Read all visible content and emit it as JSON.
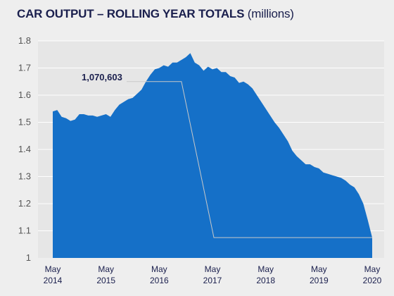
{
  "title": {
    "main": "CAR OUTPUT – ROLLING YEAR TOTALS",
    "unit": "(millions)"
  },
  "colors": {
    "area": "#1570c8",
    "plot_bg": "#e6e6e6",
    "page_bg": "#eeeeee",
    "text": "#1a1f4d",
    "grid": "#ffffff",
    "annotation_line": "#c8c8c8"
  },
  "chart_data": {
    "type": "area",
    "title": "CAR OUTPUT – ROLLING YEAR TOTALS (millions)",
    "xlabel": "",
    "ylabel": "",
    "ylim": [
      1,
      1.8
    ],
    "yticks": [
      "1",
      "1.1",
      "1.2",
      "1.3",
      "1.4",
      "1.5",
      "1.6",
      "1.7",
      "1.8"
    ],
    "xticks": [
      {
        "x": "2014-05",
        "line1": "May",
        "line2": "2014"
      },
      {
        "x": "2015-05",
        "line1": "May",
        "line2": "2015"
      },
      {
        "x": "2016-05",
        "line1": "May",
        "line2": "2016"
      },
      {
        "x": "2017-05",
        "line1": "May",
        "line2": "2017"
      },
      {
        "x": "2018-05",
        "line1": "May",
        "line2": "2018"
      },
      {
        "x": "2019-05",
        "line1": "May",
        "line2": "2019"
      },
      {
        "x": "2020-05",
        "line1": "May",
        "line2": "2020"
      }
    ],
    "grid": true,
    "series": [
      {
        "x": [
          "2014-05",
          "2014-06",
          "2014-07",
          "2014-08",
          "2014-09",
          "2014-10",
          "2014-11",
          "2014-12",
          "2015-01",
          "2015-02",
          "2015-03",
          "2015-04",
          "2015-05",
          "2015-06",
          "2015-07",
          "2015-08",
          "2015-09",
          "2015-10",
          "2015-11",
          "2015-12",
          "2016-01",
          "2016-02",
          "2016-03",
          "2016-04",
          "2016-05",
          "2016-06",
          "2016-07",
          "2016-08",
          "2016-09",
          "2016-10",
          "2016-11",
          "2016-12",
          "2017-01",
          "2017-02",
          "2017-03",
          "2017-04",
          "2017-05",
          "2017-06",
          "2017-07",
          "2017-08",
          "2017-09",
          "2017-10",
          "2017-11",
          "2017-12",
          "2018-01",
          "2018-02",
          "2018-03",
          "2018-04",
          "2018-05",
          "2018-06",
          "2018-07",
          "2018-08",
          "2018-09",
          "2018-10",
          "2018-11",
          "2018-12",
          "2019-01",
          "2019-02",
          "2019-03",
          "2019-04",
          "2019-05",
          "2019-06",
          "2019-07",
          "2019-08",
          "2019-09",
          "2019-10",
          "2019-11",
          "2019-12",
          "2020-01",
          "2020-02",
          "2020-03",
          "2020-04",
          "2020-05"
        ],
        "values": [
          1.54,
          1.545,
          1.52,
          1.515,
          1.505,
          1.51,
          1.53,
          1.53,
          1.525,
          1.525,
          1.52,
          1.525,
          1.53,
          1.52,
          1.545,
          1.565,
          1.575,
          1.585,
          1.59,
          1.605,
          1.62,
          1.65,
          1.675,
          1.695,
          1.7,
          1.71,
          1.705,
          1.72,
          1.72,
          1.73,
          1.74,
          1.755,
          1.72,
          1.71,
          1.69,
          1.705,
          1.695,
          1.7,
          1.685,
          1.685,
          1.67,
          1.665,
          1.645,
          1.65,
          1.64,
          1.625,
          1.6,
          1.575,
          1.55,
          1.525,
          1.5,
          1.48,
          1.455,
          1.43,
          1.395,
          1.375,
          1.36,
          1.345,
          1.345,
          1.335,
          1.33,
          1.315,
          1.31,
          1.305,
          1.3,
          1.295,
          1.285,
          1.27,
          1.26,
          1.235,
          1.2,
          1.14,
          1.075
        ]
      }
    ],
    "annotations": [
      {
        "text": "1,070,603",
        "value": 1070603
      }
    ]
  }
}
